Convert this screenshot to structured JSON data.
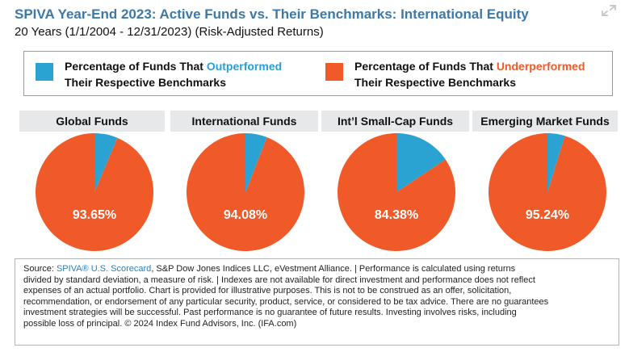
{
  "header": {
    "title": "SPIVA Year-End 2023: Active Funds vs. Their Benchmarks: International Equity",
    "subtitle": "20 Years (1/1/2004 - 12/31/2023) (Risk-Adjusted Returns)"
  },
  "legend": {
    "outperformed": {
      "prefix": "Percentage of Funds That ",
      "keyword": "Outperformed",
      "suffix": "Their Respective Benchmarks",
      "color": "#2aa3d3"
    },
    "underperformed": {
      "prefix": "Percentage of Funds That ",
      "keyword": "Underperformed",
      "suffix": "Their Respective Benchmarks",
      "color": "#f05a28"
    }
  },
  "chart_data": {
    "type": "pie",
    "series_names": [
      "Percentage of Funds That Outperformed Their Respective Benchmarks",
      "Percentage of Funds That Underperformed Their Respective Benchmarks"
    ],
    "colors": {
      "outperformed": "#2aa3d3",
      "underperformed": "#f05a28"
    },
    "charts": [
      {
        "title": "Global Funds",
        "underperformed": 93.65,
        "outperformed": 6.35,
        "label": "93.65%"
      },
      {
        "title": "International Funds",
        "underperformed": 94.08,
        "outperformed": 5.92,
        "label": "94.08%"
      },
      {
        "title": "Int’l Small-Cap Funds",
        "underperformed": 84.38,
        "outperformed": 15.62,
        "label": "84.38%"
      },
      {
        "title": "Emerging Market Funds",
        "underperformed": 95.24,
        "outperformed": 4.76,
        "label": "95.24%"
      }
    ]
  },
  "source": {
    "prefix": "Source: ",
    "link": "SPIVA® U.S. Scorecard",
    "line1_rest": ", S&P Dow Jones Indices LLC, eVestment Alliance. | Performance is calculated using returns",
    "line2": "divided by standard deviation, a measure of risk. | Indexes are not available for direct investment and performance does not reflect",
    "line3": "expenses of an actual portfolio. Chart is provided for illustrative purposes. This is not to be construed as an offer, solicitation,",
    "line4": "recommendation, or endorsement of any particular security, product, service, or considered to be tax advice. There are no guarantees",
    "line5": "investment strategies will be successful. Past performance is no guarantee of future results. Investing involves risks, including",
    "line6": "possible loss of principal. © 2024 Index Fund Advisors, Inc. (IFA.com)"
  }
}
